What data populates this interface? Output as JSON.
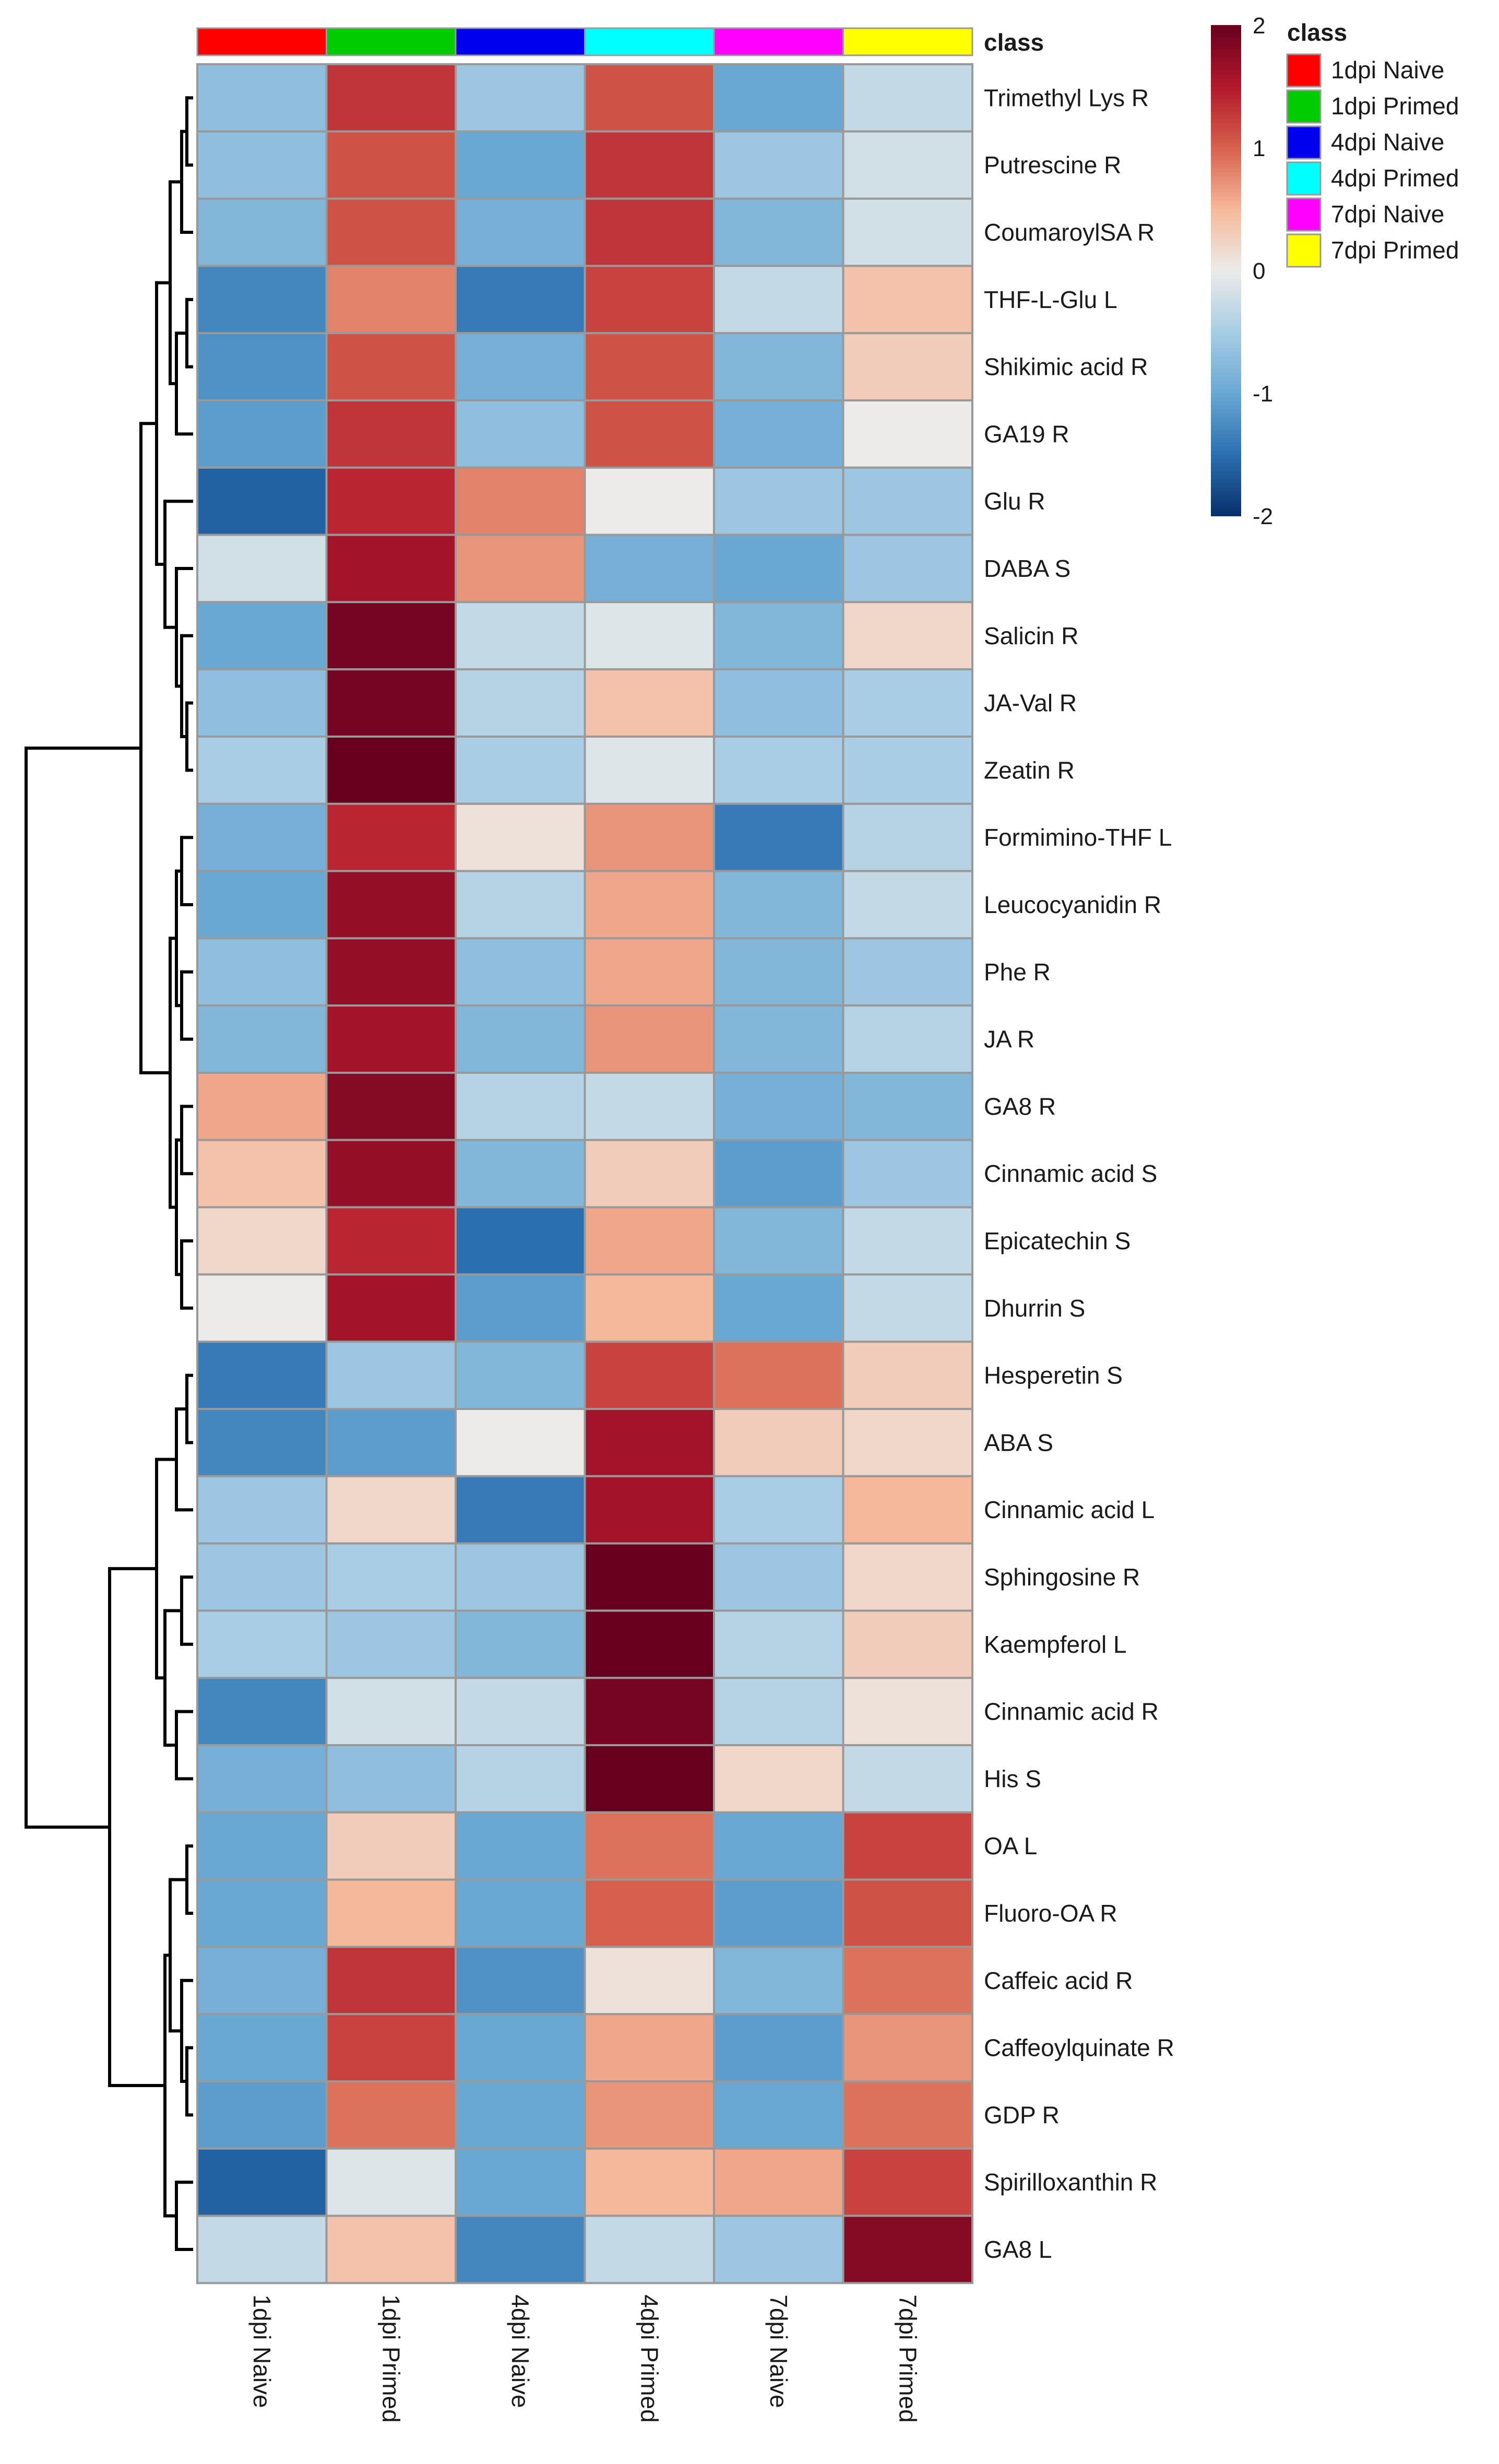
{
  "chart_data": {
    "type": "heatmap",
    "title": "",
    "class_legend": {
      "title": "class",
      "entries": [
        {
          "label": "1dpi Naive",
          "color": "#ff0000"
        },
        {
          "label": "1dpi Primed",
          "color": "#00cc00"
        },
        {
          "label": "4dpi Naive",
          "color": "#0000ee"
        },
        {
          "label": "4dpi Primed",
          "color": "#00ffff"
        },
        {
          "label": "7dpi Naive",
          "color": "#ff00ff"
        },
        {
          "label": "7dpi Primed",
          "color": "#ffff00"
        }
      ]
    },
    "color_scale": {
      "min": -2,
      "max": 2,
      "ticks": [
        "2",
        "1",
        "0",
        "-1",
        "-2"
      ],
      "stops": [
        {
          "value": -2,
          "color": "#08306b"
        },
        {
          "value": -1.5,
          "color": "#2a6fb0"
        },
        {
          "value": -1,
          "color": "#6aa8d4"
        },
        {
          "value": -0.5,
          "color": "#a8cde4"
        },
        {
          "value": 0,
          "color": "#ecebe9"
        },
        {
          "value": 0.5,
          "color": "#f6b89a"
        },
        {
          "value": 1,
          "color": "#d6604d"
        },
        {
          "value": 1.5,
          "color": "#b2182b"
        },
        {
          "value": 2,
          "color": "#67001f"
        }
      ]
    },
    "columns": [
      "1dpi Naive",
      "1dpi Primed",
      "4dpi Naive",
      "4dpi Primed",
      "7dpi Naive",
      "7dpi Primed"
    ],
    "rows": [
      {
        "label": "Trimethyl Lys R",
        "values": [
          -0.7,
          1.3,
          -0.6,
          1.1,
          -1.0,
          -0.3
        ]
      },
      {
        "label": "Putrescine R",
        "values": [
          -0.7,
          1.1,
          -1.0,
          1.3,
          -0.6,
          -0.2
        ]
      },
      {
        "label": "CoumaroylSA R",
        "values": [
          -0.8,
          1.1,
          -0.9,
          1.3,
          -0.8,
          -0.2
        ]
      },
      {
        "label": "THF-L-Glu L",
        "values": [
          -1.3,
          0.8,
          -1.4,
          1.2,
          -0.3,
          0.4
        ]
      },
      {
        "label": "Shikimic acid R",
        "values": [
          -1.2,
          1.1,
          -0.9,
          1.1,
          -0.8,
          0.3
        ]
      },
      {
        "label": "GA19 R",
        "values": [
          -1.1,
          1.3,
          -0.7,
          1.1,
          -0.9,
          0.0
        ]
      },
      {
        "label": "Glu R",
        "values": [
          -1.6,
          1.4,
          0.8,
          0.0,
          -0.6,
          -0.6
        ]
      },
      {
        "label": "DABA S",
        "values": [
          -0.2,
          1.6,
          0.7,
          -0.9,
          -1.0,
          -0.6
        ]
      },
      {
        "label": "Salicin R",
        "values": [
          -1.0,
          1.9,
          -0.3,
          -0.1,
          -0.8,
          0.2
        ]
      },
      {
        "label": "JA-Val R",
        "values": [
          -0.7,
          1.9,
          -0.4,
          0.4,
          -0.7,
          -0.5
        ]
      },
      {
        "label": "Zeatin R",
        "values": [
          -0.5,
          2.0,
          -0.5,
          -0.1,
          -0.5,
          -0.5
        ]
      },
      {
        "label": "Formimino-THF L",
        "values": [
          -0.9,
          1.4,
          0.1,
          0.7,
          -1.4,
          -0.4
        ]
      },
      {
        "label": "Leucocyanidin R",
        "values": [
          -1.0,
          1.7,
          -0.4,
          0.6,
          -0.8,
          -0.3
        ]
      },
      {
        "label": "Phe R",
        "values": [
          -0.7,
          1.7,
          -0.7,
          0.6,
          -0.8,
          -0.6
        ]
      },
      {
        "label": "JA R",
        "values": [
          -0.8,
          1.6,
          -0.8,
          0.7,
          -0.8,
          -0.4
        ]
      },
      {
        "label": "GA8 R",
        "values": [
          0.6,
          1.8,
          -0.4,
          -0.3,
          -0.9,
          -0.8
        ]
      },
      {
        "label": "Cinnamic acid S",
        "values": [
          0.4,
          1.7,
          -0.8,
          0.3,
          -1.1,
          -0.6
        ]
      },
      {
        "label": "Epicatechin S",
        "values": [
          0.2,
          1.4,
          -1.5,
          0.6,
          -0.8,
          -0.3
        ]
      },
      {
        "label": "Dhurrin S",
        "values": [
          0.0,
          1.6,
          -1.1,
          0.5,
          -1.0,
          -0.3
        ]
      },
      {
        "label": "Hesperetin S",
        "values": [
          -1.4,
          -0.6,
          -0.8,
          1.2,
          0.9,
          0.3
        ]
      },
      {
        "label": "ABA S",
        "values": [
          -1.3,
          -1.1,
          0.0,
          1.6,
          0.3,
          0.2
        ]
      },
      {
        "label": "Cinnamic acid L",
        "values": [
          -0.6,
          0.2,
          -1.4,
          1.6,
          -0.5,
          0.5
        ]
      },
      {
        "label": "Sphingosine R",
        "values": [
          -0.6,
          -0.5,
          -0.6,
          2.0,
          -0.6,
          0.2
        ]
      },
      {
        "label": "Kaempferol L",
        "values": [
          -0.5,
          -0.6,
          -0.8,
          2.0,
          -0.4,
          0.3
        ]
      },
      {
        "label": "Cinnamic acid R",
        "values": [
          -1.3,
          -0.2,
          -0.3,
          1.9,
          -0.4,
          0.1
        ]
      },
      {
        "label": "His S",
        "values": [
          -0.9,
          -0.7,
          -0.4,
          2.0,
          0.2,
          -0.3
        ]
      },
      {
        "label": "OA L",
        "values": [
          -1.0,
          0.3,
          -1.0,
          0.9,
          -1.0,
          1.2
        ]
      },
      {
        "label": "Fluoro-OA R",
        "values": [
          -1.0,
          0.5,
          -1.0,
          1.0,
          -1.1,
          1.1
        ]
      },
      {
        "label": "Caffeic acid R",
        "values": [
          -0.9,
          1.3,
          -1.2,
          0.1,
          -0.8,
          0.9
        ]
      },
      {
        "label": "Caffeoylquinate R",
        "values": [
          -1.0,
          1.2,
          -1.0,
          0.6,
          -1.1,
          0.7
        ]
      },
      {
        "label": "GDP R",
        "values": [
          -1.1,
          0.9,
          -1.0,
          0.7,
          -1.0,
          0.9
        ]
      },
      {
        "label": "Spirilloxanthin R",
        "values": [
          -1.6,
          -0.1,
          -1.0,
          0.5,
          0.6,
          1.2
        ]
      },
      {
        "label": "GA8 L",
        "values": [
          -0.3,
          0.4,
          -1.3,
          -0.3,
          -0.6,
          1.8
        ]
      }
    ]
  }
}
